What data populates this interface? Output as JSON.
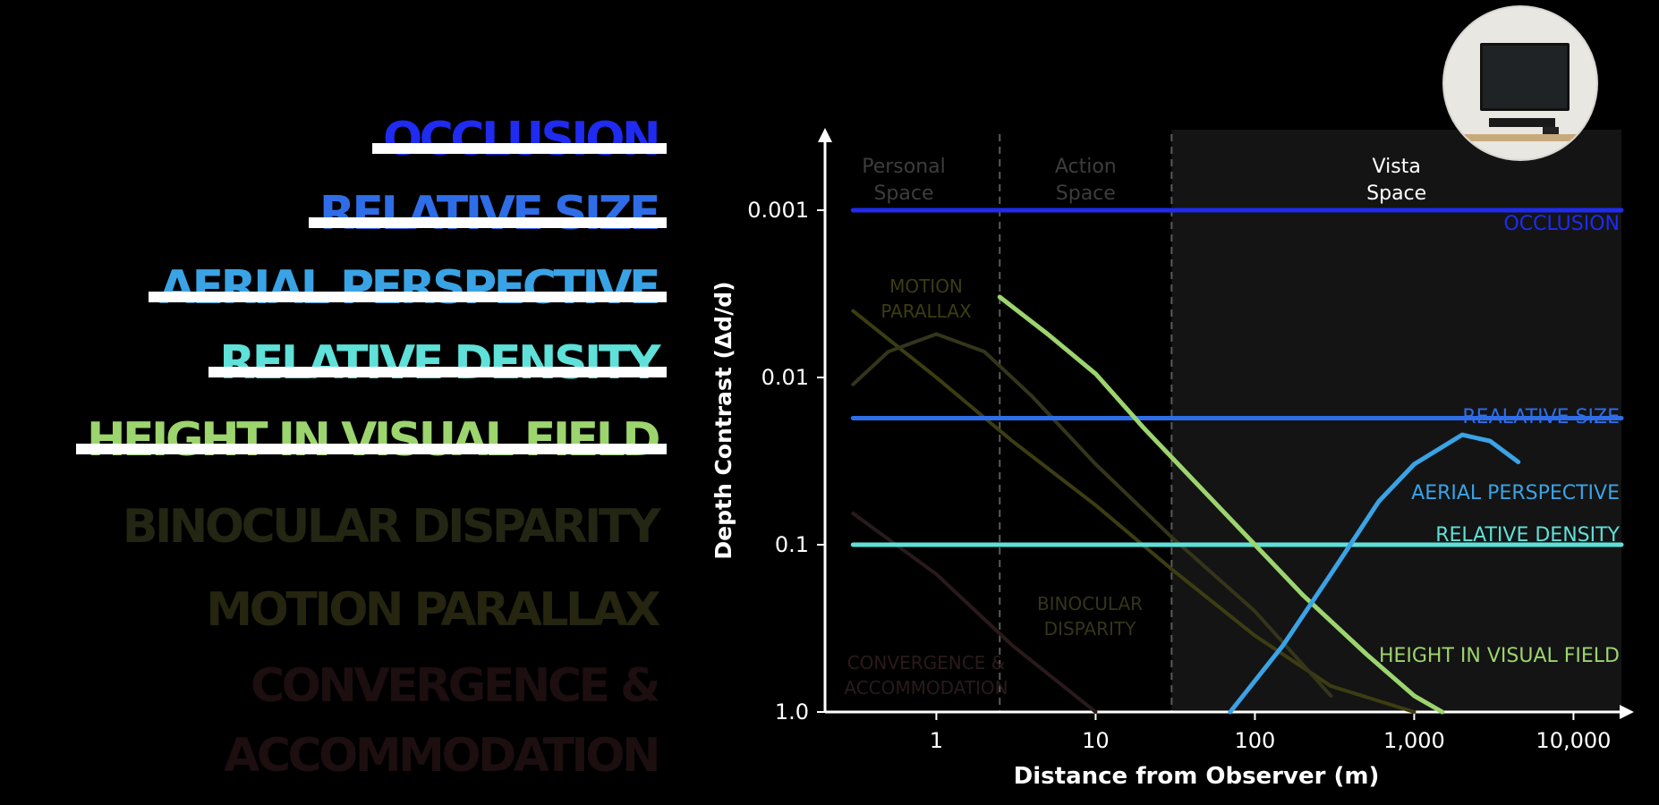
{
  "cue_list": [
    {
      "label": "OCCLUSION",
      "color": "#1f2bf0",
      "struck": true
    },
    {
      "label": "RELATIVE SIZE",
      "color": "#2f6de8",
      "struck": true
    },
    {
      "label": "AERIAL PERSPECTIVE",
      "color": "#3aa3e6",
      "struck": true
    },
    {
      "label": "RELATIVE DENSITY",
      "color": "#5fe0d8",
      "struck": true
    },
    {
      "label": "HEIGHT IN VISUAL FIELD",
      "color": "#9cd46e",
      "struck": true
    },
    {
      "label": "BINOCULAR DISPARITY",
      "color": "#222612",
      "struck": false
    },
    {
      "label": "MOTION PARALLAX",
      "color": "#252510",
      "struck": false
    },
    {
      "label": "CONVERGENCE  &",
      "color": "#1d0e10",
      "struck": false
    },
    {
      "label": "ACCOMMODATION",
      "color": "#1d0e10",
      "struck": false
    }
  ],
  "chart_data": {
    "type": "line",
    "xlabel": "Distance from Observer (m)",
    "ylabel": "Depth Contrast (Δd/d)",
    "xscale": "log",
    "yscale": "log",
    "xlim": [
      0.2,
      20000
    ],
    "ylim": [
      0.00033,
      1.0
    ],
    "y_inverted": true,
    "xticks": [
      {
        "v": 1,
        "label": "1"
      },
      {
        "v": 10,
        "label": "10"
      },
      {
        "v": 100,
        "label": "100"
      },
      {
        "v": 1000,
        "label": "1,000"
      },
      {
        "v": 10000,
        "label": "10,000"
      }
    ],
    "yticks": [
      {
        "v": 0.001,
        "label": "0.001"
      },
      {
        "v": 0.01,
        "label": "0.01"
      },
      {
        "v": 0.1,
        "label": "0.1"
      },
      {
        "v": 1.0,
        "label": "1.0"
      }
    ],
    "regions": [
      {
        "name": "Personal\nSpace",
        "from": 0.2,
        "to": 2.5,
        "active": false
      },
      {
        "name": "Action\nSpace",
        "from": 2.5,
        "to": 30,
        "active": false
      },
      {
        "name": "Vista\nSpace",
        "from": 30,
        "to": 20000,
        "active": true
      }
    ],
    "series": [
      {
        "name": "OCCLUSION",
        "color": "#1f2bf0",
        "faded": false,
        "x": [
          0.3,
          20000
        ],
        "y": [
          0.001,
          0.001
        ]
      },
      {
        "name": "REALATIVE SIZE",
        "color": "#2f6de8",
        "faded": false,
        "x": [
          0.3,
          20000
        ],
        "y": [
          0.0175,
          0.0175
        ]
      },
      {
        "name": "AERIAL PERSPECTIVE",
        "color": "#3aa3e6",
        "faded": false,
        "x": [
          70,
          150,
          300,
          600,
          1000,
          2000,
          3000,
          4500
        ],
        "y": [
          1.0,
          0.4,
          0.15,
          0.055,
          0.033,
          0.022,
          0.024,
          0.032
        ]
      },
      {
        "name": "RELATIVE DENSITY",
        "color": "#5fe0d8",
        "faded": false,
        "x": [
          0.3,
          20000
        ],
        "y": [
          0.1,
          0.1
        ]
      },
      {
        "name": "HEIGHT IN  VISUAL FIELD",
        "color": "#9cd46e",
        "faded": false,
        "x": [
          2.5,
          5,
          10,
          20,
          50,
          100,
          200,
          500,
          1000,
          1500
        ],
        "y": [
          0.0033,
          0.0055,
          0.0095,
          0.02,
          0.05,
          0.1,
          0.2,
          0.45,
          0.8,
          1.0
        ]
      },
      {
        "name": "MOTION\nPARALLAX",
        "color": "#3d3d12",
        "faded": true,
        "x": [
          0.3,
          1,
          3,
          10,
          30,
          100,
          300,
          1000
        ],
        "y": [
          0.004,
          0.01,
          0.024,
          0.058,
          0.14,
          0.35,
          0.7,
          1.0
        ]
      },
      {
        "name": "BINOCULAR\nDISPARITY",
        "color": "#35351a",
        "faded": true,
        "x": [
          0.3,
          0.5,
          1,
          2,
          4,
          10,
          30,
          100,
          300
        ],
        "y": [
          0.011,
          0.007,
          0.0055,
          0.007,
          0.013,
          0.033,
          0.09,
          0.25,
          0.8
        ]
      },
      {
        "name": "CONVERGENCE &\nACCOMMODATION",
        "color": "#2a1a1c",
        "faded": true,
        "x": [
          0.3,
          1,
          3,
          10
        ],
        "y": [
          0.065,
          0.15,
          0.4,
          1.0
        ]
      }
    ]
  },
  "thumbnail": {
    "alt": "living room with wall-mounted TV"
  }
}
